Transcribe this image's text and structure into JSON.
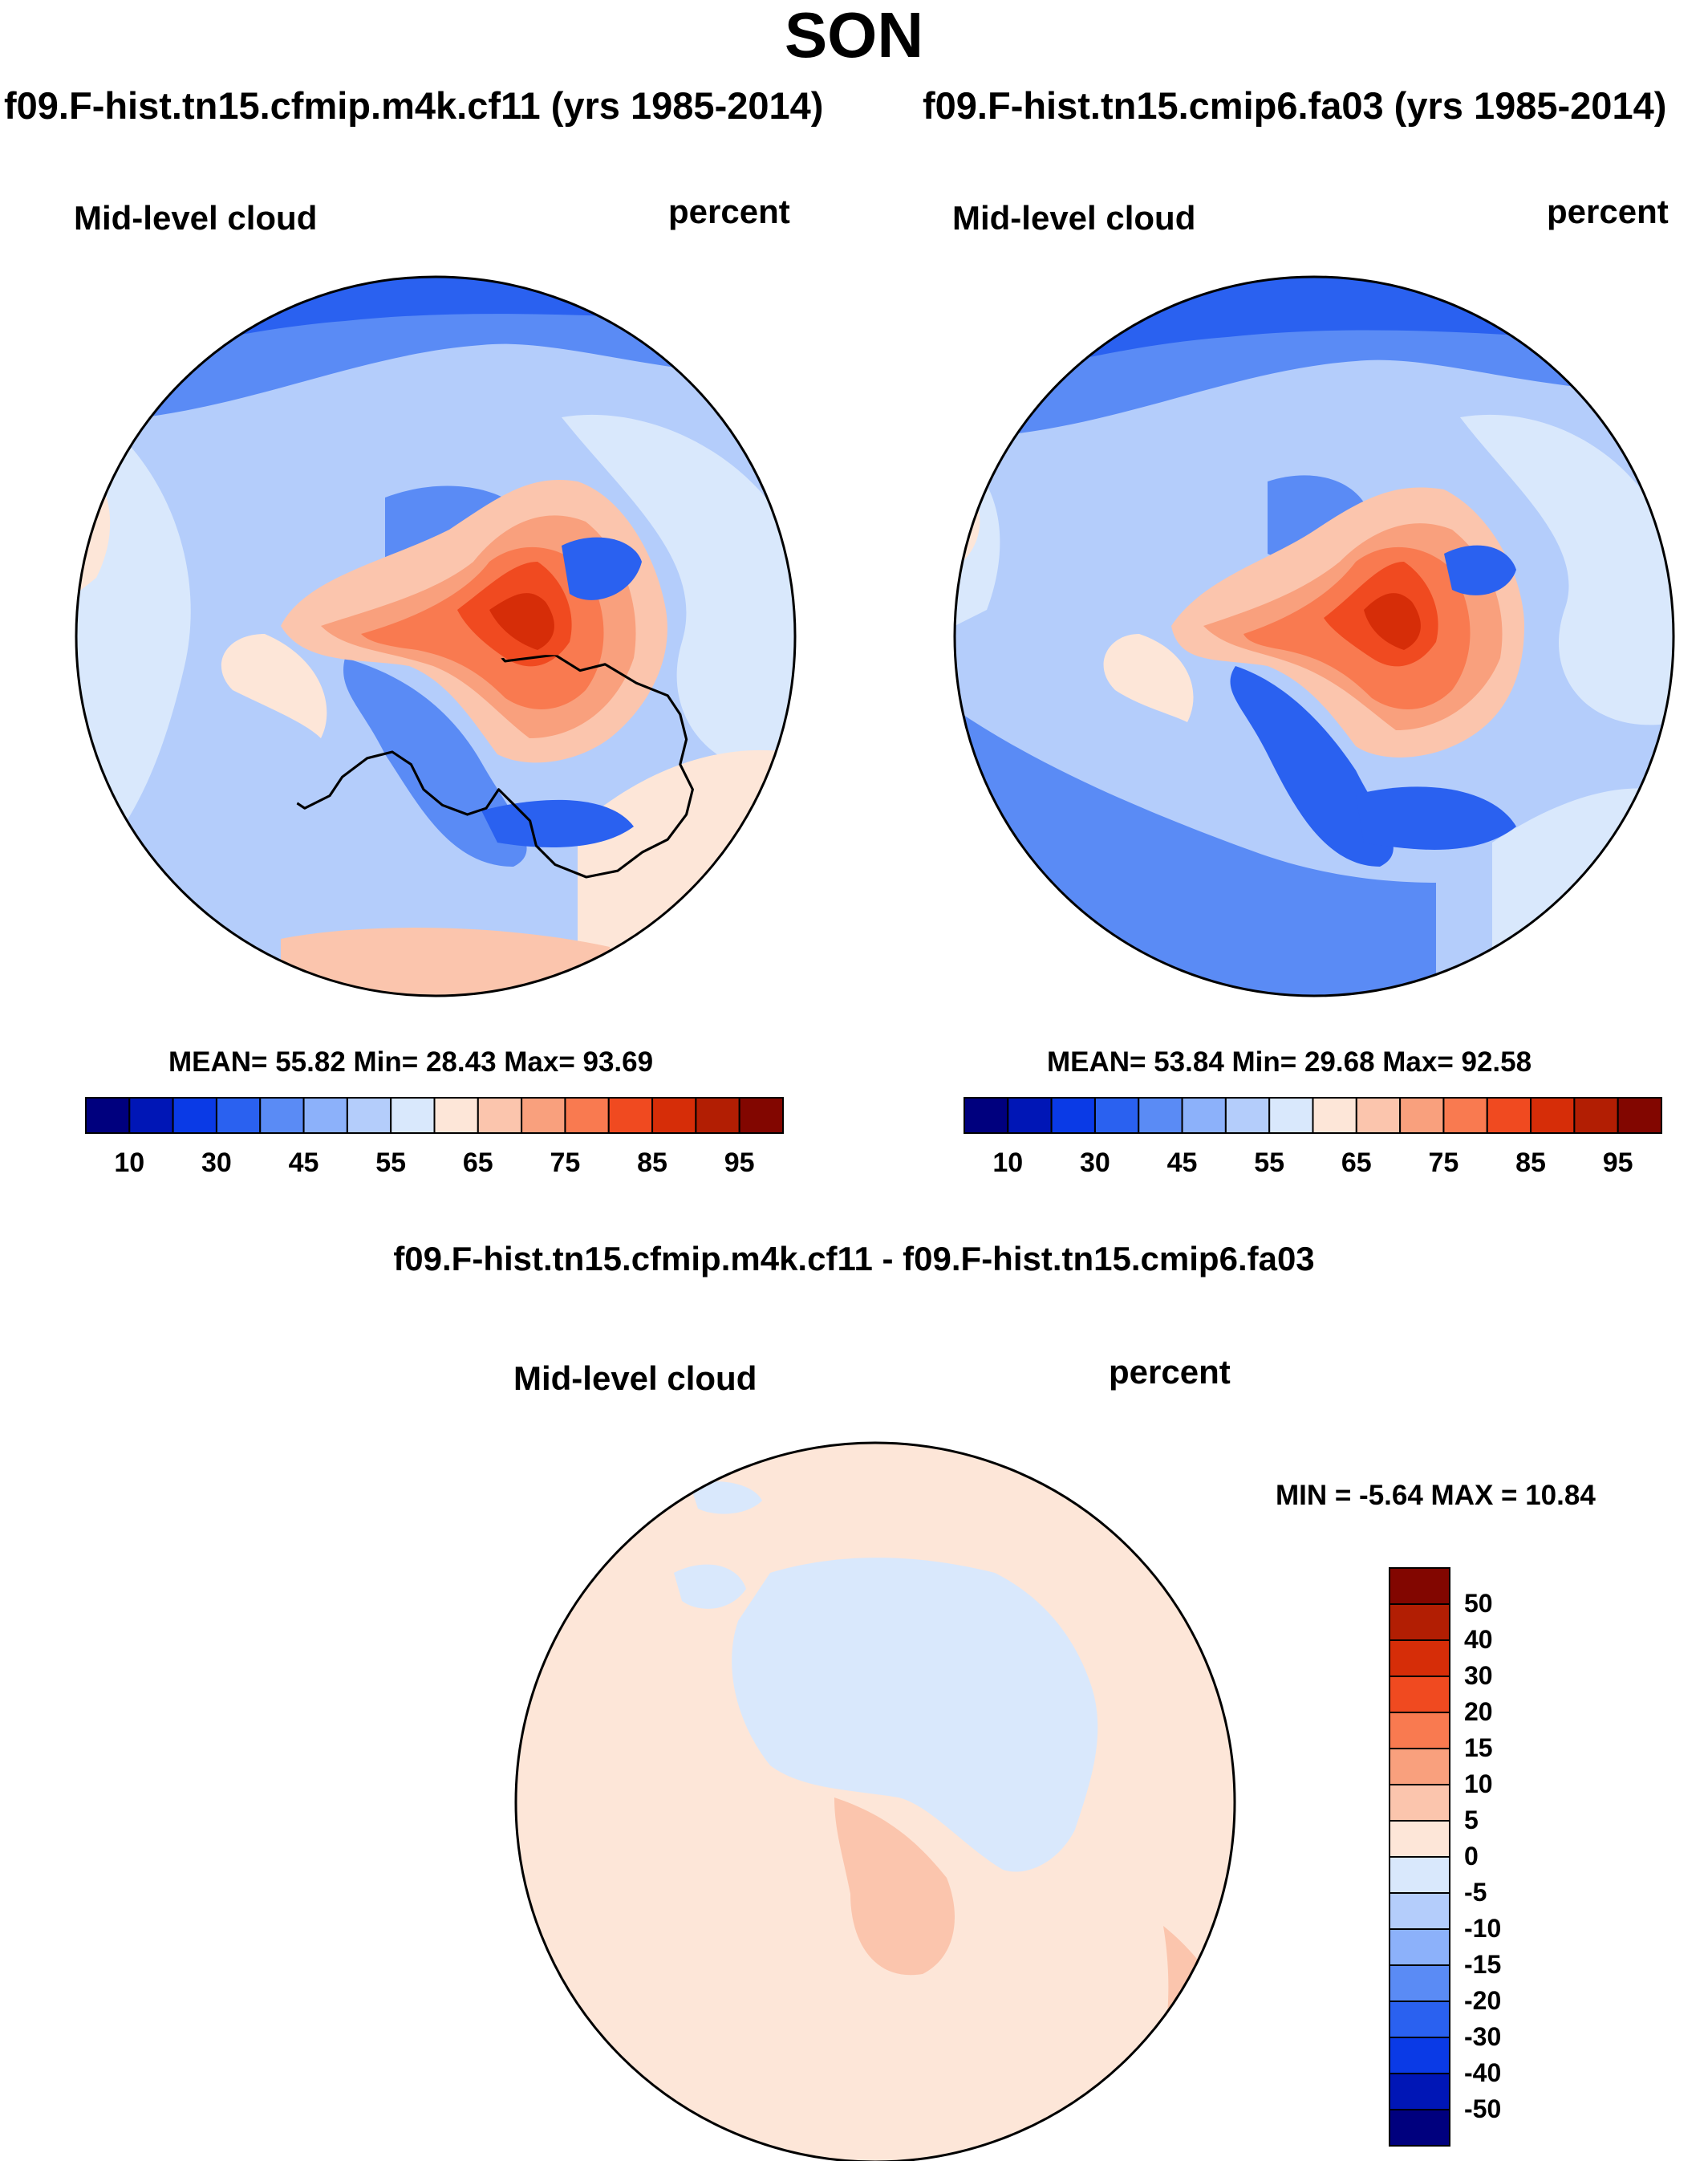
{
  "figure": {
    "title": "SON",
    "diff_title": "f09.F-hist.tn15.cfmip.m4k.cf11 - f09.F-hist.tn15.cmip6.fa03"
  },
  "panels": [
    {
      "case": "f09.F-hist.tn15.cfmip.m4k.cf11 (yrs 1985-2014)",
      "variable": "Mid-level cloud",
      "units": "percent",
      "stats_text": "MEAN=  55.82  Min=  28.43  Max=  93.69",
      "mean": 55.82,
      "min": 28.43,
      "max": 93.69
    },
    {
      "case": "f09.F-hist.tn15.cmip6.fa03 (yrs 1985-2014)",
      "variable": "Mid-level cloud",
      "units": "percent",
      "stats_text": "MEAN=  53.84  Min=  29.68  Max=  92.58",
      "mean": 53.84,
      "min": 29.68,
      "max": 92.58
    },
    {
      "variable": "Mid-level cloud",
      "units": "percent",
      "stats_text": "MIN =  -5.64 MAX =  10.84",
      "min": -5.64,
      "max": 10.84
    }
  ],
  "colorbars": {
    "absolute": {
      "colors": [
        "#00007e",
        "#0016b6",
        "#0a3ae6",
        "#2a61f0",
        "#5a8bf5",
        "#8cb1fa",
        "#b4cdfb",
        "#d9e8fc",
        "#fde6d8",
        "#fbc5ad",
        "#f9a07d",
        "#f97a50",
        "#f04a20",
        "#d62d08",
        "#b21e03",
        "#820600"
      ],
      "tick_labels": [
        "10",
        "30",
        "45",
        "55",
        "65",
        "75",
        "85",
        "95"
      ]
    },
    "difference": {
      "colors": [
        "#820600",
        "#b21e03",
        "#d62d08",
        "#f04a20",
        "#f97a50",
        "#f9a07d",
        "#fbc5ad",
        "#fde6d8",
        "#d9e8fc",
        "#b4cdfb",
        "#8cb1fa",
        "#5a8bf5",
        "#2a61f0",
        "#0a3ae6",
        "#0016b6",
        "#00007e"
      ],
      "tick_labels": [
        "50",
        "40",
        "30",
        "20",
        "15",
        "10",
        "5",
        "0",
        "-5",
        "-10",
        "-15",
        "-20",
        "-30",
        "-40",
        "-50"
      ]
    }
  }
}
